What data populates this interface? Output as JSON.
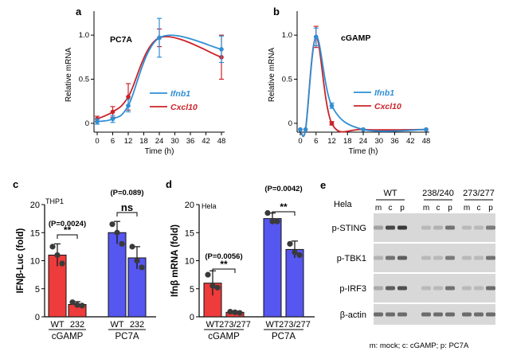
{
  "panels": {
    "a": "a",
    "b": "b",
    "c": "c",
    "d": "d",
    "e": "e"
  },
  "colors": {
    "red": "#cc2229",
    "blue": "#2f8fd4",
    "bar_red": "#ee3b3b",
    "bar_blue": "#5656f0",
    "blot_bg": "#d8d8d8",
    "band": "#333333"
  },
  "chart_data": [
    {
      "panel": "a",
      "type": "line",
      "title": "PC7A",
      "xlabel": "Time (h)",
      "ylabel": "Relative mRNA",
      "xlim": [
        0,
        48
      ],
      "ylim": [
        -0.1,
        1.2
      ],
      "x_ticks": [
        0,
        6,
        12,
        18,
        24,
        30,
        36,
        42,
        48
      ],
      "y_ticks": [
        0,
        0.5,
        1.0
      ],
      "y_tick_labels": [
        "0",
        "0.5",
        "1.0"
      ],
      "series": [
        {
          "name": "Ifnb1",
          "color": "#2f8fd4",
          "x": [
            0,
            6,
            12,
            24,
            48
          ],
          "y": [
            0.02,
            0.05,
            0.2,
            0.97,
            0.84
          ],
          "err": [
            0.03,
            0.04,
            0.07,
            0.22,
            0.15
          ]
        },
        {
          "name": "Cxcl10",
          "color": "#cc2229",
          "x": [
            0,
            6,
            12,
            24,
            48
          ],
          "y": [
            0.05,
            0.13,
            0.3,
            0.97,
            0.75
          ],
          "err": [
            0.03,
            0.06,
            0.15,
            0.1,
            0.25
          ]
        }
      ]
    },
    {
      "panel": "b",
      "type": "line",
      "title": "cGAMP",
      "xlabel": "Time (h)",
      "ylabel": "Relative mRNA",
      "xlim": [
        0,
        48
      ],
      "ylim": [
        -0.1,
        1.2
      ],
      "x_ticks": [
        0,
        6,
        12,
        18,
        24,
        30,
        36,
        42,
        48
      ],
      "y_ticks": [
        0,
        0.5,
        1.0
      ],
      "y_tick_labels": [
        "0",
        "0.5",
        "1.0"
      ],
      "series": [
        {
          "name": "Ifnb1",
          "color": "#2f8fd4",
          "x": [
            0,
            2,
            6,
            12,
            24,
            48
          ],
          "y": [
            -0.07,
            -0.07,
            0.98,
            0.2,
            -0.07,
            -0.07
          ],
          "err": [
            0,
            0,
            0.1,
            0.03,
            0,
            0
          ]
        },
        {
          "name": "Cxcl10",
          "color": "#cc2229",
          "x": [
            0,
            2,
            6,
            12,
            24,
            48
          ],
          "y": [
            -0.07,
            -0.07,
            0.98,
            0.0,
            -0.07,
            -0.07
          ],
          "err": [
            0,
            0,
            0.12,
            0.02,
            0,
            0
          ]
        }
      ]
    },
    {
      "panel": "c",
      "type": "bar",
      "cell_line": "THP1",
      "ylabel": "IFNβ-Luc (fold)",
      "ylim": [
        0,
        20
      ],
      "y_ticks": [
        0,
        5,
        10,
        15,
        20
      ],
      "categories": [
        "WT",
        "232",
        "WT",
        "232"
      ],
      "groups": [
        "cGAMP",
        "PC7A"
      ],
      "values": [
        11.0,
        2.2,
        15.0,
        10.5
      ],
      "errors": [
        2.0,
        0.5,
        2.0,
        2.0
      ],
      "points": [
        [
          12.5,
          11.0,
          9.5
        ],
        [
          2.6,
          2.1,
          2.0
        ],
        [
          16.5,
          15.0,
          13.0
        ],
        [
          12.5,
          10.0,
          8.8
        ]
      ],
      "stats": [
        {
          "p": "(P=0.0024)",
          "sig": "**"
        },
        {
          "p": "(P=0.089)",
          "sig": "ns"
        }
      ]
    },
    {
      "panel": "d",
      "type": "bar",
      "cell_line": "Hela",
      "ylabel": "Ifnβ mRNA (fold)",
      "ylim": [
        0,
        20
      ],
      "y_ticks": [
        0,
        5,
        10,
        15,
        20
      ],
      "categories": [
        "WT",
        "273/277",
        "WT",
        "273/277"
      ],
      "groups": [
        "cGAMP",
        "PC7A"
      ],
      "values": [
        6.0,
        0.8,
        17.5,
        12.0
      ],
      "errors": [
        2.2,
        0.2,
        1.0,
        1.5
      ],
      "points": [
        [
          7.5,
          5.5,
          5.2
        ],
        [
          0.9,
          0.8,
          0.7
        ],
        [
          18.5,
          17.0,
          17.0
        ],
        [
          13.0,
          11.5,
          11.0
        ]
      ],
      "stats": [
        {
          "p": "(P=0.0056)",
          "sig": "**"
        },
        {
          "p": "(P=0.0042)",
          "sig": "**"
        }
      ]
    }
  ],
  "blot": {
    "cell_line": "Hela",
    "genotypes": [
      "WT",
      "238/240",
      "273/277"
    ],
    "lanes": [
      "m",
      "c",
      "p"
    ],
    "rows": [
      "p-STING",
      "p-TBK1",
      "p-IRF3",
      "β-actin"
    ],
    "intensity": [
      [
        0.2,
        0.85,
        0.95,
        0.05,
        0.1,
        0.55,
        0.05,
        0.05,
        0.5
      ],
      [
        0.1,
        0.55,
        0.7,
        0.05,
        0.05,
        0.5,
        0.05,
        0.05,
        0.55
      ],
      [
        0.15,
        0.7,
        0.8,
        0.05,
        0.05,
        0.55,
        0.05,
        0.05,
        0.6
      ],
      [
        0.6,
        0.6,
        0.6,
        0.6,
        0.6,
        0.6,
        0.6,
        0.6,
        0.6
      ]
    ],
    "legend": "m: mock; c: cGAMP; p: PC7A"
  }
}
